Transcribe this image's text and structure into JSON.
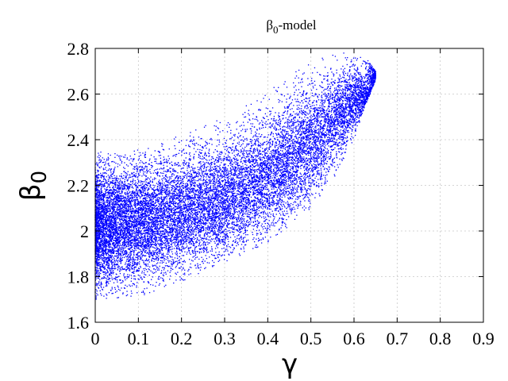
{
  "chart_data": {
    "type": "scatter",
    "title": "β",
    "title_sub": "0",
    "title_suffix": "-model",
    "xlabel": "γ",
    "ylabel": "β",
    "ylabel_sub": "0",
    "xlim": [
      0,
      0.9
    ],
    "ylim": [
      1.6,
      2.8
    ],
    "xticks": [
      0,
      0.1,
      0.2,
      0.3,
      0.4,
      0.5,
      0.6,
      0.7,
      0.8,
      0.9
    ],
    "xtick_labels": [
      "0",
      "0.1",
      "0.2",
      "0.3",
      "0.4",
      "0.5",
      "0.6",
      "0.7",
      "0.8",
      "0.9"
    ],
    "yticks": [
      1.6,
      1.8,
      2.0,
      2.2,
      2.4,
      2.6,
      2.8
    ],
    "ytick_labels": [
      "1.6",
      "1.8",
      "2",
      "2.2",
      "2.4",
      "2.6",
      "2.8"
    ],
    "grid": true,
    "marker_color": "#0000ff",
    "envelope": {
      "x": [
        0.0,
        0.05,
        0.1,
        0.15,
        0.2,
        0.25,
        0.3,
        0.35,
        0.4,
        0.45,
        0.5,
        0.55,
        0.6,
        0.62,
        0.65
      ],
      "y_lower": [
        1.7,
        1.7,
        1.71,
        1.74,
        1.78,
        1.82,
        1.86,
        1.9,
        1.95,
        2.02,
        2.1,
        2.22,
        2.4,
        2.52,
        2.66
      ],
      "y_upper": [
        2.35,
        2.34,
        2.36,
        2.39,
        2.42,
        2.46,
        2.5,
        2.55,
        2.61,
        2.68,
        2.74,
        2.78,
        2.79,
        2.78,
        2.7
      ]
    },
    "ridge": {
      "x": [
        0.0,
        0.1,
        0.2,
        0.3,
        0.4,
        0.5,
        0.6
      ],
      "y": [
        2.02,
        2.04,
        2.08,
        2.14,
        2.24,
        2.38,
        2.58
      ]
    }
  }
}
